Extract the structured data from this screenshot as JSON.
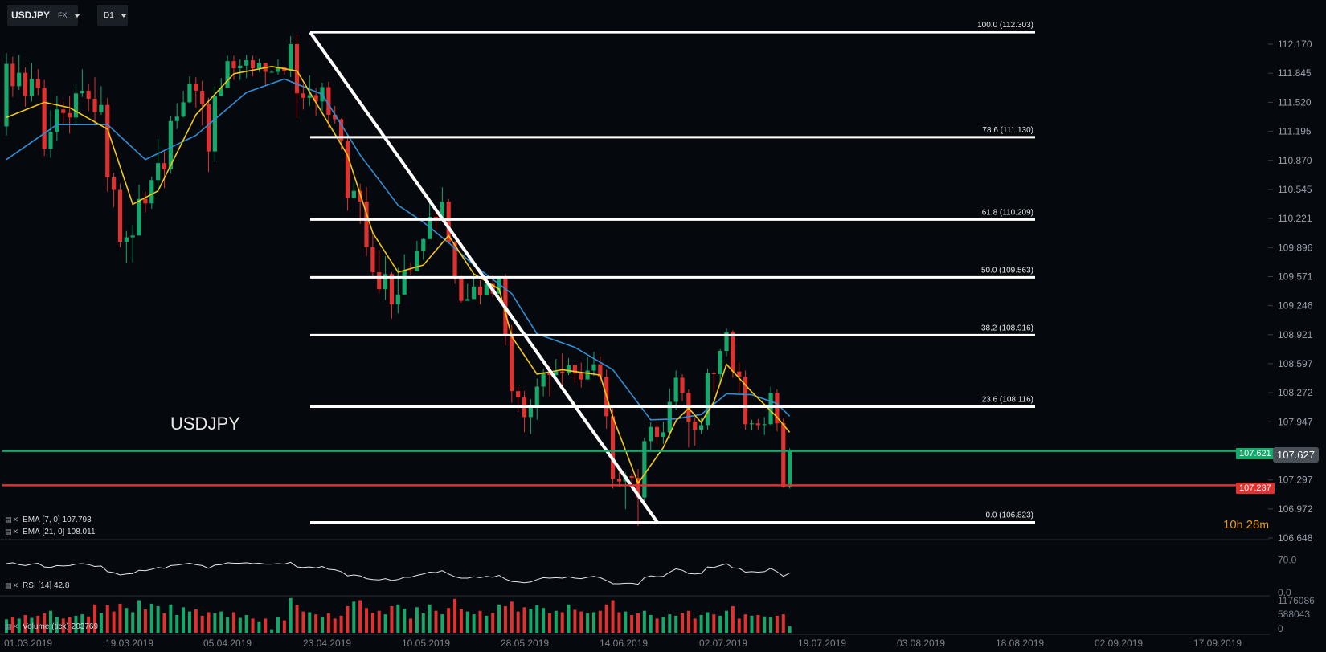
{
  "toolbar": {
    "symbol": "USDJPY",
    "market": "FX",
    "timeframe": "D1"
  },
  "chart_title": "USDJPY",
  "chart_data": {
    "type": "candlestick",
    "instrument": "USDJPY",
    "timeframe": "D1",
    "price_axis": {
      "min": 106.648,
      "max": 112.17,
      "ticks": [
        "112.170",
        "111.845",
        "111.520",
        "111.195",
        "110.870",
        "110.545",
        "110.221",
        "109.896",
        "109.571",
        "109.246",
        "108.921",
        "108.597",
        "108.272",
        "107.947",
        "107.297",
        "106.972",
        "106.648"
      ]
    },
    "date_axis": {
      "labels": [
        "01.03.2019",
        "19.03.2019",
        "05.04.2019",
        "23.04.2019",
        "10.05.2019",
        "28.05.2019",
        "14.06.2019",
        "02.07.2019",
        "19.07.2019",
        "03.08.2019",
        "18.08.2019",
        "02.09.2019",
        "17.09.2019"
      ]
    },
    "current_price": "107.627",
    "horizontal_lines": [
      {
        "label": "107.621",
        "value": 107.621,
        "color": "#15a86b"
      },
      {
        "label": "107.237",
        "value": 107.237,
        "color": "#e03131"
      }
    ],
    "fibonacci": {
      "from": {
        "date": "23.04.2019",
        "price": 112.303
      },
      "to": {
        "date": "19.06.2019",
        "price": 106.823
      },
      "levels": [
        {
          "label": "100.0 (112.303)",
          "price": 112.303
        },
        {
          "label": "78.6 (111.130)",
          "price": 111.13
        },
        {
          "label": "61.8 (110.209)",
          "price": 110.209
        },
        {
          "label": "50.0 (109.563)",
          "price": 109.563
        },
        {
          "label": "38.2 (108.916)",
          "price": 108.916
        },
        {
          "label": "23.6 (108.116)",
          "price": 108.116
        },
        {
          "label": "0.0 (106.823)",
          "price": 106.823
        }
      ]
    },
    "indicators": {
      "ema_fast": {
        "label": "EMA",
        "params": "[7, 0]",
        "value": "107.793",
        "color": "#f2c80f"
      },
      "ema_slow": {
        "label": "EMA",
        "params": "[21, 0]",
        "value": "108.011",
        "color": "#2f8fd6"
      },
      "rsi": {
        "label": "RSI",
        "params": "[14]",
        "value": "42.8",
        "ticks": [
          "70.0",
          "0.0"
        ]
      },
      "volume": {
        "label": "Volume",
        "params": "(tick)",
        "value": "203769",
        "ticks": [
          "1176086",
          "588043",
          "0"
        ]
      }
    },
    "candles": [
      [
        111.25,
        111.95,
        112.07,
        111.15
      ],
      [
        111.95,
        111.7,
        112.03,
        111.58
      ],
      [
        111.7,
        111.85,
        112.05,
        111.66
      ],
      [
        111.85,
        111.59,
        111.91,
        111.47
      ],
      [
        111.59,
        111.78,
        111.96,
        111.53
      ],
      [
        111.78,
        111.68,
        111.89,
        111.6
      ],
      [
        111.68,
        111.0,
        111.77,
        110.92
      ],
      [
        111.0,
        111.19,
        111.43,
        110.9
      ],
      [
        111.19,
        111.44,
        111.59,
        111.09
      ],
      [
        111.44,
        111.4,
        111.53,
        111.26
      ],
      [
        111.4,
        111.35,
        111.59,
        111.17
      ],
      [
        111.35,
        111.62,
        111.72,
        111.29
      ],
      [
        111.62,
        111.65,
        111.89,
        111.58
      ],
      [
        111.65,
        111.56,
        111.73,
        111.42
      ],
      [
        111.56,
        111.41,
        111.8,
        111.26
      ],
      [
        111.41,
        111.49,
        111.7,
        111.38
      ],
      [
        111.49,
        110.68,
        111.57,
        110.52
      ],
      [
        110.68,
        110.54,
        110.73,
        110.35
      ],
      [
        110.54,
        109.96,
        110.61,
        109.9
      ],
      [
        109.96,
        110.01,
        110.08,
        109.72
      ],
      [
        110.01,
        110.03,
        110.15,
        109.73
      ],
      [
        110.03,
        110.44,
        110.6,
        110.37
      ],
      [
        110.44,
        110.39,
        110.52,
        110.29
      ],
      [
        110.39,
        110.65,
        110.69,
        110.33
      ],
      [
        110.65,
        110.84,
        111.11,
        110.56
      ],
      [
        110.84,
        110.77,
        110.97,
        110.56
      ],
      [
        110.77,
        111.31,
        111.37,
        110.72
      ],
      [
        111.31,
        111.36,
        111.51,
        111.22
      ],
      [
        111.36,
        111.52,
        111.65,
        111.35
      ],
      [
        111.52,
        111.73,
        111.81,
        111.51
      ],
      [
        111.73,
        111.65,
        111.8,
        111.46
      ],
      [
        111.65,
        111.5,
        111.76,
        111.26
      ],
      [
        111.5,
        110.97,
        111.57,
        110.74
      ],
      [
        110.97,
        111.59,
        111.7,
        110.85
      ],
      [
        111.59,
        111.68,
        111.79,
        111.59
      ],
      [
        111.68,
        111.98,
        112.04,
        111.88
      ],
      [
        111.98,
        111.9,
        112.04,
        111.77
      ],
      [
        111.9,
        111.93,
        112.0,
        111.77
      ],
      [
        111.93,
        111.99,
        112.05,
        111.79
      ],
      [
        111.99,
        111.9,
        112.04,
        111.81
      ],
      [
        111.9,
        111.96,
        112.01,
        111.86
      ],
      [
        111.96,
        111.86,
        111.94,
        111.71
      ],
      [
        111.86,
        111.86,
        111.88,
        111.86
      ],
      [
        111.86,
        111.91,
        112.0,
        111.83
      ],
      [
        111.91,
        111.87,
        111.92,
        111.83
      ],
      [
        111.87,
        112.17,
        112.26,
        111.8
      ],
      [
        112.17,
        111.62,
        112.28,
        111.34
      ],
      [
        111.62,
        111.57,
        111.73,
        111.44
      ],
      [
        111.57,
        111.6,
        111.82,
        111.48
      ],
      [
        111.6,
        111.53,
        111.68,
        111.37
      ],
      [
        111.53,
        111.69,
        111.74,
        111.42
      ],
      [
        111.69,
        111.38,
        111.75,
        111.24
      ],
      [
        111.38,
        111.33,
        111.48,
        111.28
      ],
      [
        111.33,
        111.09,
        111.34,
        110.99
      ],
      [
        111.09,
        110.45,
        111.12,
        110.31
      ],
      [
        110.45,
        110.53,
        110.62,
        110.44
      ],
      [
        110.53,
        110.41,
        110.61,
        110.16
      ],
      [
        110.41,
        109.9,
        110.57,
        109.8
      ],
      [
        109.9,
        109.62,
        110.08,
        109.55
      ],
      [
        109.62,
        109.43,
        109.87,
        109.38
      ],
      [
        109.43,
        109.6,
        109.8,
        109.31
      ],
      [
        109.6,
        109.26,
        109.62,
        109.1
      ],
      [
        109.26,
        109.37,
        109.67,
        109.16
      ],
      [
        109.37,
        109.64,
        109.82,
        109.52
      ],
      [
        109.64,
        109.63,
        109.73,
        109.59
      ],
      [
        109.63,
        109.86,
        109.97,
        109.8
      ],
      [
        109.86,
        109.99,
        110.0,
        109.76
      ],
      [
        109.99,
        110.24,
        110.43,
        110.05
      ],
      [
        110.24,
        110.22,
        110.31,
        110.08
      ],
      [
        110.22,
        110.41,
        110.57,
        110.21
      ],
      [
        110.41,
        109.95,
        110.44,
        109.94
      ],
      [
        109.95,
        109.57,
        109.97,
        109.49
      ],
      [
        109.57,
        109.3,
        109.58,
        109.28
      ],
      [
        109.3,
        109.32,
        109.49,
        109.31
      ],
      [
        109.32,
        109.46,
        109.61,
        109.43
      ],
      [
        109.46,
        109.36,
        109.53,
        109.26
      ],
      [
        109.36,
        109.49,
        109.52,
        109.37
      ],
      [
        109.49,
        109.38,
        109.59,
        109.34
      ],
      [
        109.38,
        109.55,
        109.57,
        109.38
      ],
      [
        109.55,
        108.91,
        109.6,
        108.8
      ],
      [
        108.91,
        108.29,
        109.03,
        108.16
      ],
      [
        108.29,
        108.22,
        108.34,
        108.06
      ],
      [
        108.22,
        108.0,
        108.29,
        107.83
      ],
      [
        108.0,
        108.13,
        108.2,
        107.81
      ],
      [
        108.13,
        108.34,
        108.43,
        107.97
      ],
      [
        108.34,
        108.5,
        108.54,
        108.23
      ],
      [
        108.5,
        108.47,
        108.57,
        108.23
      ],
      [
        108.47,
        108.51,
        108.65,
        108.41
      ],
      [
        108.51,
        108.49,
        108.71,
        108.36
      ],
      [
        108.49,
        108.58,
        108.66,
        108.47
      ],
      [
        108.58,
        108.49,
        108.6,
        108.38
      ],
      [
        108.49,
        108.42,
        108.61,
        108.33
      ],
      [
        108.42,
        108.52,
        108.67,
        108.44
      ],
      [
        108.52,
        108.59,
        108.73,
        108.46
      ],
      [
        108.59,
        108.45,
        108.68,
        108.38
      ],
      [
        108.45,
        108.01,
        108.53,
        107.87
      ],
      [
        108.01,
        107.31,
        108.1,
        107.2
      ],
      [
        107.31,
        107.28,
        107.46,
        107.22
      ],
      [
        107.28,
        107.34,
        107.38,
        106.97
      ],
      [
        107.34,
        107.32,
        107.37,
        107.19
      ],
      [
        107.32,
        107.1,
        107.42,
        106.78
      ],
      [
        107.1,
        107.73,
        107.77,
        107.06
      ],
      [
        107.73,
        107.89,
        107.94,
        107.63
      ],
      [
        107.89,
        107.78,
        107.95,
        107.7
      ],
      [
        107.78,
        107.83,
        107.95,
        107.7
      ],
      [
        107.83,
        108.17,
        108.32,
        107.76
      ],
      [
        108.17,
        108.44,
        108.52,
        108.08
      ],
      [
        108.44,
        108.27,
        108.48,
        108.18
      ],
      [
        108.27,
        107.95,
        108.31,
        107.66
      ],
      [
        107.95,
        107.86,
        108.0,
        107.68
      ],
      [
        107.86,
        107.91,
        107.99,
        107.81
      ],
      [
        107.91,
        108.49,
        108.54,
        107.86
      ],
      [
        108.49,
        108.48,
        108.51,
        108.28
      ],
      [
        108.48,
        108.74,
        108.76,
        108.37
      ],
      [
        108.74,
        108.95,
        108.99,
        108.68
      ],
      [
        108.95,
        108.51,
        108.97,
        108.44
      ],
      [
        108.51,
        108.45,
        108.61,
        108.27
      ],
      [
        108.45,
        107.92,
        108.52,
        107.86
      ],
      [
        107.92,
        107.93,
        107.97,
        107.85
      ],
      [
        107.93,
        107.91,
        107.98,
        107.86
      ],
      [
        107.91,
        107.92,
        108.0,
        107.8
      ],
      [
        107.92,
        108.27,
        108.34,
        107.91
      ],
      [
        108.27,
        107.93,
        108.31,
        107.84
      ],
      [
        107.93,
        107.22,
        107.99,
        107.21
      ],
      [
        107.22,
        107.62,
        107.65,
        107.2
      ]
    ],
    "ema7": [
      [
        0,
        111.35
      ],
      [
        6,
        111.52
      ],
      [
        10,
        111.46
      ],
      [
        16,
        111.22
      ],
      [
        20,
        110.38
      ],
      [
        24,
        110.53
      ],
      [
        30,
        111.38
      ],
      [
        36,
        111.84
      ],
      [
        42,
        111.92
      ],
      [
        46,
        111.87
      ],
      [
        54,
        110.93
      ],
      [
        58,
        110.06
      ],
      [
        62,
        109.62
      ],
      [
        66,
        109.7
      ],
      [
        70,
        110.03
      ],
      [
        74,
        109.6
      ],
      [
        78,
        109.43
      ],
      [
        80,
        108.9
      ],
      [
        84,
        108.48
      ],
      [
        88,
        108.53
      ],
      [
        94,
        108.47
      ],
      [
        96,
        108.0
      ],
      [
        100,
        107.26
      ],
      [
        104,
        107.66
      ],
      [
        106,
        107.96
      ],
      [
        108,
        108.1
      ],
      [
        110,
        107.94
      ],
      [
        112,
        108.17
      ],
      [
        114,
        108.59
      ],
      [
        118,
        108.28
      ],
      [
        122,
        108.0
      ],
      [
        124,
        107.83
      ]
    ],
    "ema21": [
      [
        0,
        110.88
      ],
      [
        8,
        111.27
      ],
      [
        16,
        111.27
      ],
      [
        22,
        110.88
      ],
      [
        30,
        111.15
      ],
      [
        38,
        111.63
      ],
      [
        44,
        111.78
      ],
      [
        50,
        111.61
      ],
      [
        56,
        110.93
      ],
      [
        62,
        110.37
      ],
      [
        66,
        110.18
      ],
      [
        70,
        109.95
      ],
      [
        74,
        109.7
      ],
      [
        80,
        109.38
      ],
      [
        84,
        108.93
      ],
      [
        90,
        108.78
      ],
      [
        96,
        108.53
      ],
      [
        102,
        107.97
      ],
      [
        106,
        107.98
      ],
      [
        110,
        108.03
      ],
      [
        114,
        108.26
      ],
      [
        118,
        108.25
      ],
      [
        122,
        108.15
      ],
      [
        124,
        108.01
      ]
    ],
    "rsi_values": [
      62,
      64,
      60,
      58,
      61,
      63,
      55,
      54,
      58,
      57,
      58,
      61,
      62,
      60,
      56,
      57,
      45,
      43,
      38,
      40,
      41,
      48,
      47,
      50,
      54,
      52,
      58,
      59,
      61,
      63,
      60,
      58,
      52,
      59,
      60,
      64,
      63,
      63,
      64,
      62,
      63,
      61,
      61,
      62,
      61,
      65,
      55,
      54,
      55,
      53,
      56,
      50,
      49,
      45,
      36,
      38,
      36,
      30,
      28,
      27,
      30,
      26,
      28,
      33,
      33,
      37,
      40,
      44,
      43,
      47,
      40,
      34,
      31,
      31,
      34,
      32,
      35,
      33,
      37,
      29,
      24,
      23,
      21,
      23,
      28,
      32,
      31,
      32,
      31,
      34,
      31,
      30,
      33,
      35,
      32,
      26,
      19,
      19,
      20,
      20,
      18,
      32,
      36,
      34,
      35,
      44,
      51,
      48,
      41,
      40,
      41,
      55,
      54,
      58,
      62,
      53,
      52,
      44,
      45,
      44,
      45,
      52,
      45,
      35,
      42
    ],
    "volumes": [
      0.38,
      0.45,
      0.4,
      0.5,
      0.42,
      0.48,
      0.55,
      0.62,
      0.45,
      0.4,
      0.44,
      0.48,
      0.52,
      0.46,
      0.8,
      0.55,
      0.78,
      0.6,
      0.82,
      0.7,
      0.58,
      0.92,
      0.66,
      0.82,
      0.75,
      0.55,
      0.8,
      0.5,
      0.72,
      0.6,
      0.66,
      0.48,
      0.58,
      0.55,
      0.6,
      0.45,
      0.58,
      0.42,
      0.5,
      0.4,
      0.3,
      0.4,
      0.1,
      0.45,
      0.35,
      0.98,
      0.78,
      0.6,
      0.58,
      0.52,
      0.45,
      0.55,
      0.4,
      0.48,
      0.75,
      0.88,
      0.92,
      0.7,
      0.56,
      0.62,
      0.52,
      0.75,
      0.8,
      0.68,
      0.4,
      0.72,
      0.55,
      0.8,
      0.62,
      0.52,
      0.7,
      0.96,
      0.66,
      0.6,
      0.52,
      0.62,
      0.48,
      0.56,
      0.8,
      0.75,
      0.88,
      0.6,
      0.72,
      0.68,
      0.78,
      0.7,
      0.55,
      0.62,
      0.58,
      0.8,
      0.65,
      0.6,
      0.55,
      0.58,
      0.62,
      0.8,
      0.92,
      0.58,
      0.6,
      0.5,
      0.55,
      0.62,
      0.5,
      0.4,
      0.45,
      0.52,
      0.48,
      0.55,
      0.62,
      0.4,
      0.5,
      0.58,
      0.52,
      0.48,
      0.62,
      0.75,
      0.4,
      0.52,
      0.48,
      0.5,
      0.46,
      0.45,
      0.48,
      0.52,
      0.18
    ]
  },
  "countdown": {
    "hours": "10",
    "hours_unit": "h",
    "minutes": "28",
    "minutes_unit": "m"
  },
  "colors": {
    "bull": "#15a86b",
    "bear": "#e03131",
    "fib": "#ffffff",
    "background": "#05080c"
  }
}
